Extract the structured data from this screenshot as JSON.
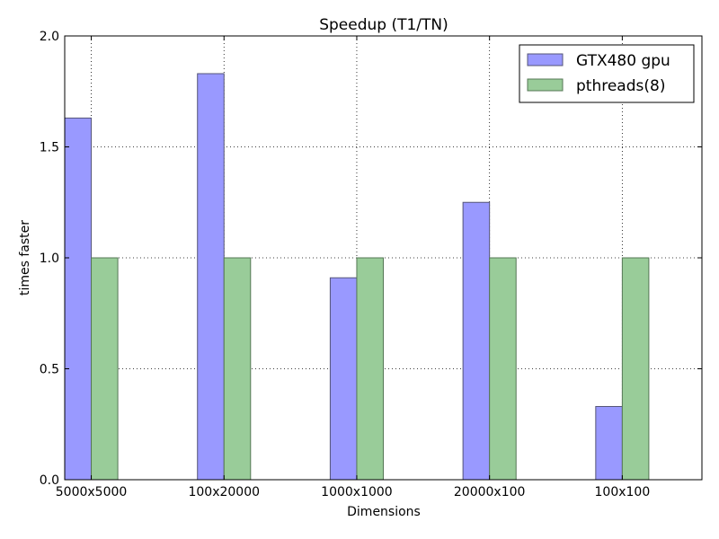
{
  "chart_data": {
    "type": "bar",
    "title": "Speedup (T1/TN)",
    "xlabel": "Dimensions",
    "ylabel": "times faster",
    "categories": [
      "5000x5000",
      "100x20000",
      "1000x1000",
      "20000x100",
      "100x100"
    ],
    "series": [
      {
        "name": "GTX480 gpu",
        "values": [
          1.63,
          1.83,
          0.91,
          1.25,
          0.33
        ],
        "color": "#9999ff"
      },
      {
        "name": "pthreads(8)",
        "values": [
          1.0,
          1.0,
          1.0,
          1.0,
          1.0
        ],
        "color": "#99cc99"
      }
    ],
    "ylim": [
      0.0,
      2.0
    ],
    "yticks": [
      "0.0",
      "0.5",
      "1.0",
      "1.5",
      "2.0"
    ],
    "grid": true,
    "legend_position": "top-right"
  }
}
